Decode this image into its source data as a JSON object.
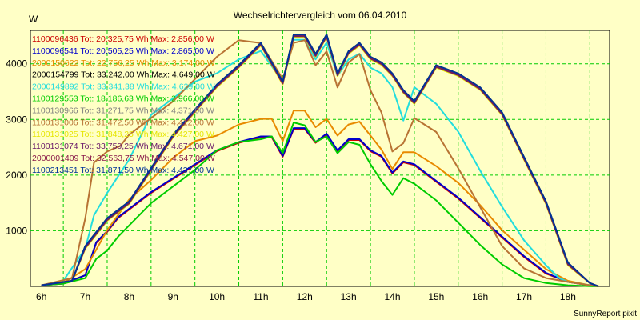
{
  "chart_data": {
    "type": "line",
    "title": "Wechselrichtervergleich vom 06.04.2010",
    "ylabel": "W",
    "footer": "SunnyReport pixit",
    "x_ticks": [
      "6h",
      "7h",
      "8h",
      "9h",
      "10h",
      "11h",
      "12h",
      "13h",
      "14h",
      "15h",
      "16h",
      "17h",
      "18h"
    ],
    "y_ticks": [
      "1000",
      "2000",
      "3000",
      "4000"
    ],
    "xlim": [
      5.75,
      18.95
    ],
    "ylim": [
      0,
      4600
    ],
    "grid": true,
    "grid_color": "#00cc00",
    "background": "#ffffc6",
    "legend_placement": "top-left",
    "series": [
      {
        "label": "1100096436 Tot: 20.325,75 Wh Max: 2.856,00 W",
        "color": "#cc0000",
        "profile": "low"
      },
      {
        "label": "1100096541 Tot: 20.505,25 Wh Max: 2.865,00 W",
        "color": "#0000cc",
        "profile": "low"
      },
      {
        "label": "2000150622 Tot: 22.756,25 Wh Max: 3.174,00 W",
        "color": "#e88a00",
        "profile": "mid"
      },
      {
        "label": "2000154799 Tot: 33.242,00 Wh Max: 4.649,00 W",
        "color": "#000000",
        "profile": "high"
      },
      {
        "label": "2000149892 Tot: 33.341,38 Wh Max: 4.629,00 W",
        "color": "#22dddd",
        "profile": "cyan"
      },
      {
        "label": "1100129553 Tot: 18.186,63 Wh Max: 2.966,00 W",
        "color": "#00cc00",
        "profile": "green"
      },
      {
        "label": "1100130966 Tot: 31.271,75 Wh Max: 4.371,00 W",
        "color": "#808080",
        "profile": "high"
      },
      {
        "label": "1100131006 Tot: 31.472,50 Wh Max: 4.412,00 W",
        "color": "#b87333",
        "profile": "copper"
      },
      {
        "label": "1100131025 Tot: 31.848,25 Wh Max: 4.427,00 W",
        "color": "#e6e600",
        "profile": "high"
      },
      {
        "label": "1100131074 Tot: 33.759,25 Wh Max: 4.671,00 W",
        "color": "#6a1a6a",
        "profile": "high"
      },
      {
        "label": "2000001409 Tot: 32.563,75 Wh Max: 4.547,00 W",
        "color": "#8a1a4a",
        "profile": "high"
      },
      {
        "label": "1100213451 Tot: 31.871,50 Wh Max: 4.437,00 W",
        "color": "#003399",
        "profile": "high"
      }
    ],
    "profiles": {
      "high": {
        "x": [
          6.0,
          6.7,
          7.0,
          7.5,
          8.0,
          9.0,
          10.0,
          10.5,
          11.0,
          11.5,
          11.75,
          12.0,
          12.25,
          12.5,
          12.75,
          13.0,
          13.25,
          13.5,
          13.75,
          14.0,
          14.25,
          14.5,
          15.0,
          15.5,
          16.0,
          16.5,
          17.0,
          17.5,
          18.0,
          18.5,
          18.7
        ],
        "y": [
          20,
          100,
          700,
          1200,
          1500,
          2700,
          3600,
          3950,
          4350,
          3650,
          4500,
          4500,
          4150,
          4500,
          3800,
          4200,
          4350,
          4100,
          4000,
          3800,
          3500,
          3300,
          3950,
          3800,
          3550,
          3100,
          2300,
          1500,
          400,
          60,
          0
        ]
      },
      "copper": {
        "x": [
          6.0,
          6.7,
          7.0,
          7.2,
          7.5,
          7.8,
          8.0,
          9.0,
          10.0,
          10.5,
          11.0,
          11.5,
          11.75,
          12.0,
          12.25,
          12.5,
          12.75,
          13.0,
          13.25,
          13.5,
          13.75,
          14.0,
          14.25,
          14.5,
          15.0,
          15.5,
          16.0,
          16.5,
          17.0,
          17.5,
          18.0,
          18.5,
          18.7
        ],
        "y": [
          20,
          150,
          1200,
          2200,
          2400,
          2500,
          2700,
          3300,
          4100,
          4400,
          4350,
          3700,
          4350,
          4400,
          3950,
          4200,
          3550,
          4000,
          4150,
          3500,
          3100,
          2400,
          2550,
          3000,
          2750,
          2100,
          1400,
          700,
          300,
          150,
          80,
          20,
          0
        ]
      },
      "cyan": {
        "x": [
          6.0,
          6.5,
          7.0,
          7.2,
          7.5,
          7.75,
          8.0,
          8.25,
          8.5,
          9.0,
          9.5,
          10.0,
          10.5,
          11.0,
          11.5,
          11.75,
          12.0,
          12.25,
          12.5,
          12.75,
          13.0,
          13.25,
          13.5,
          13.75,
          14.0,
          14.25,
          14.5,
          15.0,
          15.5,
          16.0,
          16.5,
          17.0,
          17.5,
          17.8,
          18.0,
          18.5,
          18.7
        ],
        "y": [
          20,
          100,
          700,
          1300,
          1700,
          2000,
          2300,
          2700,
          3100,
          3400,
          3700,
          3850,
          4100,
          4250,
          3700,
          4450,
          4450,
          4100,
          4400,
          3800,
          4100,
          4200,
          3950,
          3850,
          3600,
          3000,
          3600,
          3300,
          2800,
          2100,
          1450,
          850,
          400,
          150,
          80,
          20,
          0
        ]
      },
      "mid": {
        "x": [
          6.0,
          6.5,
          7.0,
          7.5,
          8.0,
          8.5,
          9.0,
          9.5,
          10.0,
          10.5,
          11.0,
          11.25,
          11.5,
          11.75,
          12.0,
          12.25,
          12.5,
          12.75,
          13.0,
          13.25,
          13.5,
          13.75,
          14.0,
          14.25,
          14.5,
          15.0,
          15.5,
          16.0,
          16.5,
          17.0,
          17.5,
          18.0,
          18.5,
          18.7
        ],
        "y": [
          20,
          60,
          300,
          1000,
          1550,
          1900,
          2300,
          2600,
          2700,
          2900,
          3000,
          3000,
          2600,
          3150,
          3150,
          2850,
          3000,
          2700,
          2900,
          2950,
          2700,
          2450,
          2100,
          2400,
          2400,
          2150,
          1850,
          1450,
          1000,
          650,
          300,
          100,
          20,
          0
        ]
      },
      "low": {
        "x": [
          6.0,
          6.5,
          7.0,
          7.25,
          7.5,
          7.75,
          8.0,
          8.5,
          9.0,
          9.5,
          10.0,
          10.5,
          11.0,
          11.25,
          11.5,
          11.75,
          12.0,
          12.25,
          12.5,
          12.75,
          13.0,
          13.25,
          13.5,
          13.75,
          14.0,
          14.25,
          14.5,
          15.0,
          15.5,
          16.0,
          16.5,
          17.0,
          17.5,
          18.0,
          18.5,
          18.7
        ],
        "y": [
          20,
          50,
          200,
          800,
          1000,
          1250,
          1400,
          1700,
          1950,
          2200,
          2450,
          2600,
          2700,
          2700,
          2350,
          2850,
          2850,
          2600,
          2750,
          2450,
          2650,
          2650,
          2450,
          2350,
          2050,
          2250,
          2200,
          1900,
          1600,
          1250,
          900,
          550,
          250,
          80,
          20,
          0
        ]
      },
      "green": {
        "x": [
          6.0,
          6.5,
          7.0,
          7.25,
          7.5,
          7.75,
          8.0,
          8.5,
          9.0,
          9.5,
          10.0,
          10.5,
          11.0,
          11.25,
          11.5,
          11.75,
          12.0,
          12.25,
          12.5,
          12.75,
          13.0,
          13.25,
          13.5,
          13.75,
          14.0,
          14.25,
          14.5,
          15.0,
          15.5,
          16.0,
          16.5,
          17.0,
          17.5,
          18.0,
          18.5,
          18.7
        ],
        "y": [
          20,
          50,
          150,
          500,
          650,
          900,
          1100,
          1500,
          1800,
          2100,
          2450,
          2600,
          2650,
          2700,
          2400,
          2950,
          2900,
          2600,
          2700,
          2400,
          2600,
          2550,
          2200,
          1900,
          1650,
          1950,
          1850,
          1550,
          1150,
          750,
          400,
          150,
          60,
          20,
          5,
          0
        ]
      }
    }
  }
}
